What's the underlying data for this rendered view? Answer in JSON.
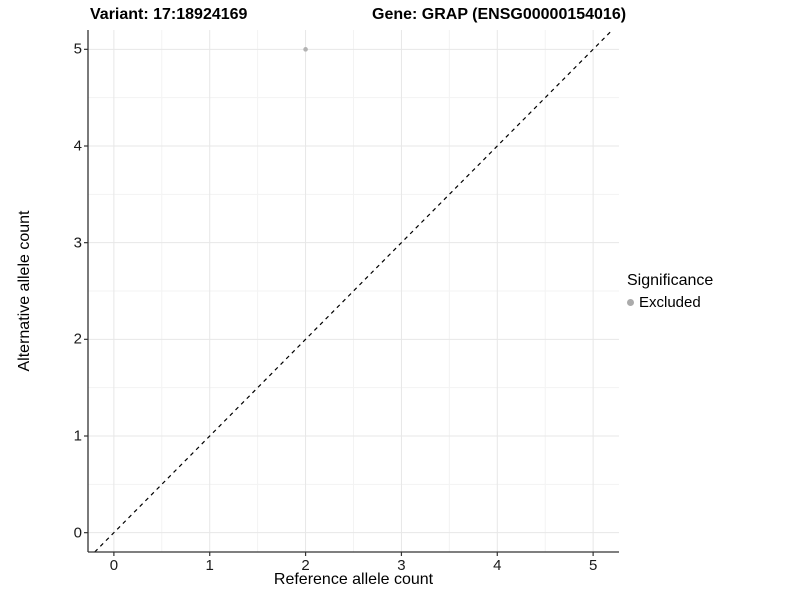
{
  "header": {
    "variant_title": "Variant: 17:18924169",
    "gene_title": "Gene: GRAP (ENSG00000154016)"
  },
  "legend": {
    "title": "Significance",
    "items": [
      {
        "label": "Excluded",
        "color": "#ababab"
      }
    ]
  },
  "colors": {
    "background": "#ffffff",
    "grid_major": "#e7e7e7",
    "grid_minor": "#f3f3f3",
    "axis_line": "#333333",
    "tick_mark": "#333333",
    "identity_line": "#000000",
    "point": "#b3b3b3"
  },
  "chart_data": {
    "type": "scatter",
    "title": "Variant: 17:18924169   Gene: GRAP (ENSG00000154016)",
    "xlabel": "Reference allele count",
    "ylabel": "Alternative allele count",
    "xlim": [
      -0.27,
      5.27
    ],
    "ylim": [
      -0.2,
      5.2
    ],
    "x_ticks": [
      0,
      1,
      2,
      3,
      4,
      5
    ],
    "y_ticks": [
      0,
      1,
      2,
      3,
      4,
      5
    ],
    "x_minor_ticks": [
      0.5,
      1.5,
      2.5,
      3.5,
      4.5
    ],
    "y_minor_ticks": [
      0.5,
      1.5,
      2.5,
      3.5,
      4.5
    ],
    "grid": true,
    "legend_position": "right",
    "series": [
      {
        "name": "Excluded",
        "color": "#b3b3b3",
        "points": [
          {
            "x": 2,
            "y": 5
          }
        ]
      }
    ],
    "reference_line": {
      "kind": "identity",
      "style": "dashed",
      "color": "#000000",
      "dash": "4 4"
    }
  }
}
